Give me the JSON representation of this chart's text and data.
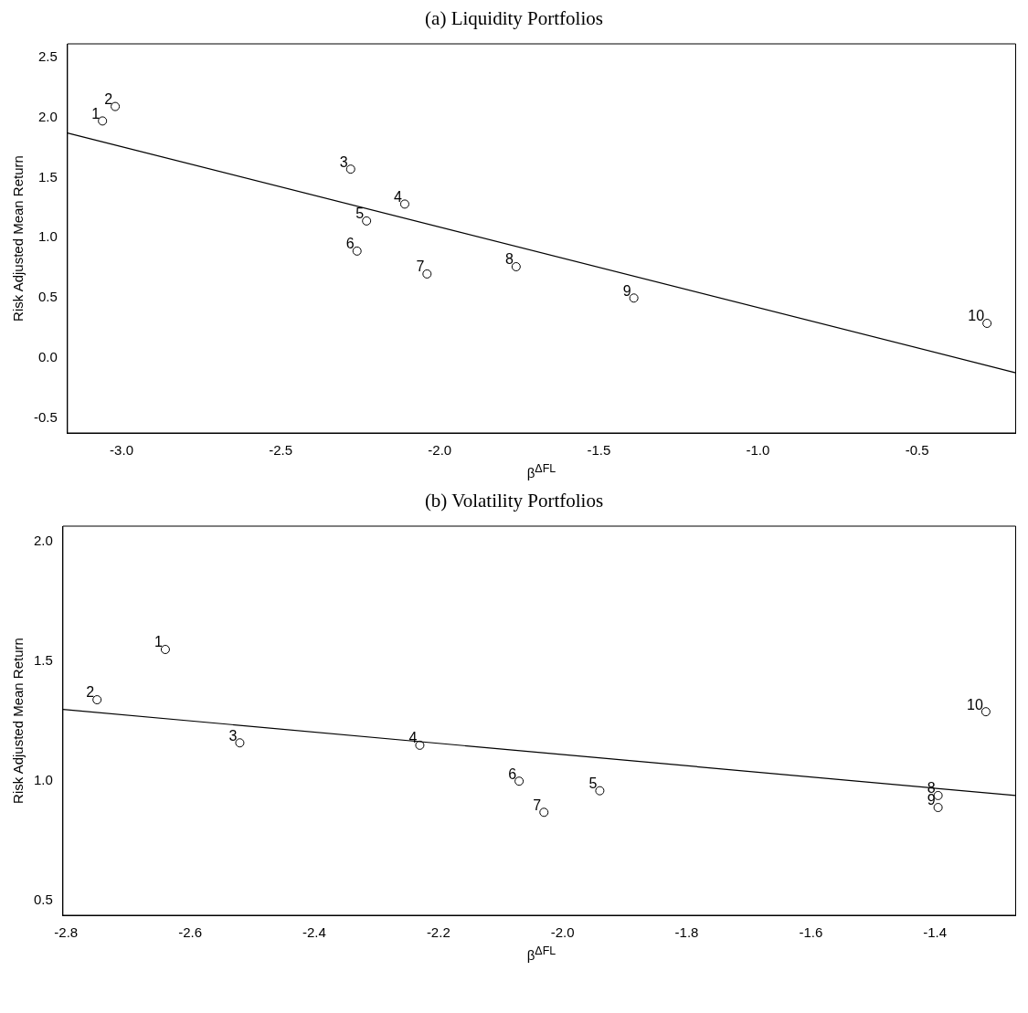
{
  "chart_data": [
    {
      "type": "scatter",
      "title": "(a) Liquidity Portfolios",
      "xlabel": "β$^{ΔFL}$",
      "ylabel": "Risk Adjusted Mean Return",
      "grid": false,
      "legend": false,
      "xlim": [
        -3.17,
        -0.19
      ],
      "xticks": [
        {
          "value": -3,
          "label": "-3.0"
        },
        {
          "value": -2.5,
          "label": "-2.5"
        },
        {
          "value": -2,
          "label": "-2.0"
        },
        {
          "value": -1.5,
          "label": "-1.5"
        },
        {
          "value": -1,
          "label": "-1.0"
        },
        {
          "value": -0.5,
          "label": "-0.5"
        }
      ],
      "ylim": [
        -0.62,
        2.61
      ],
      "yticks": [
        {
          "value": -0.5,
          "label": "-0.5"
        },
        {
          "value": 0,
          "label": "0.0"
        },
        {
          "value": 0.5,
          "label": "0.5"
        },
        {
          "value": 1,
          "label": "1.0"
        },
        {
          "value": 1.5,
          "label": "1.5"
        },
        {
          "value": 2,
          "label": "2.0"
        },
        {
          "value": 2.5,
          "label": "2.5"
        }
      ],
      "series": [
        {
          "type": "scatter",
          "marker": "circle",
          "color": "#000000",
          "x": [
            -3.06,
            -3.02,
            -2.28,
            -2.11,
            -2.23,
            -2.26,
            -2.04,
            -1.76,
            -1.39,
            -0.28
          ],
          "values": [
            1.97,
            2.09,
            1.57,
            1.28,
            1.14,
            0.89,
            0.7,
            0.76,
            0.5,
            0.29
          ]
        },
        {
          "type": "line",
          "marker": "none",
          "color": "#000000",
          "x": [
            -3.17,
            -0.19
          ],
          "values": [
            1.87,
            -0.12
          ]
        }
      ],
      "annotations": [
        {
          "text": "1",
          "x": -3.06,
          "y": 1.97
        },
        {
          "text": "2",
          "x": -3.02,
          "y": 2.09
        },
        {
          "text": "3",
          "x": -2.28,
          "y": 1.57
        },
        {
          "text": "4",
          "x": -2.11,
          "y": 1.28
        },
        {
          "text": "5",
          "x": -2.23,
          "y": 1.14
        },
        {
          "text": "6",
          "x": -2.26,
          "y": 0.89
        },
        {
          "text": "7",
          "x": -2.04,
          "y": 0.7
        },
        {
          "text": "8",
          "x": -1.76,
          "y": 0.76
        },
        {
          "text": "9",
          "x": -1.39,
          "y": 0.5
        },
        {
          "text": "10",
          "x": -0.28,
          "y": 0.29
        }
      ]
    },
    {
      "type": "scatter",
      "title": "(b) Volatility Portfolios",
      "xlabel": "β$^{ΔFL}$",
      "ylabel": "Risk Adjusted Mean Return",
      "grid": false,
      "legend": false,
      "xlim": [
        -2.805,
        -1.27
      ],
      "xticks": [
        {
          "value": -2.8,
          "label": "-2.8"
        },
        {
          "value": -2.6,
          "label": "-2.6"
        },
        {
          "value": -2.4,
          "label": "-2.4"
        },
        {
          "value": -2.2,
          "label": "-2.2"
        },
        {
          "value": -2,
          "label": "-2.0"
        },
        {
          "value": -1.8,
          "label": "-1.8"
        },
        {
          "value": -1.6,
          "label": "-1.6"
        },
        {
          "value": -1.4,
          "label": "-1.4"
        }
      ],
      "ylim": [
        0.44,
        2.065
      ],
      "yticks": [
        {
          "value": 0.5,
          "label": "0.5"
        },
        {
          "value": 1,
          "label": "1.0"
        },
        {
          "value": 1.5,
          "label": "1.5"
        },
        {
          "value": 2,
          "label": "2.0"
        }
      ],
      "series": [
        {
          "type": "scatter",
          "marker": "circle",
          "color": "#000000",
          "x": [
            -2.64,
            -2.75,
            -2.52,
            -2.23,
            -1.94,
            -2.07,
            -2.03,
            -1.395,
            -1.395,
            -1.318
          ],
          "values": [
            1.55,
            1.34,
            1.16,
            1.15,
            0.96,
            1.0,
            0.87,
            0.94,
            0.89,
            1.29
          ]
        },
        {
          "type": "line",
          "marker": "none",
          "color": "#000000",
          "x": [
            -2.805,
            -1.27
          ],
          "values": [
            1.3,
            0.94
          ]
        }
      ],
      "annotations": [
        {
          "text": "1",
          "x": -2.64,
          "y": 1.55
        },
        {
          "text": "2",
          "x": -2.75,
          "y": 1.34
        },
        {
          "text": "3",
          "x": -2.52,
          "y": 1.16
        },
        {
          "text": "4",
          "x": -2.23,
          "y": 1.15
        },
        {
          "text": "5",
          "x": -1.94,
          "y": 0.96
        },
        {
          "text": "6",
          "x": -2.07,
          "y": 1.0
        },
        {
          "text": "7",
          "x": -2.03,
          "y": 0.87
        },
        {
          "text": "8",
          "x": -1.395,
          "y": 0.94
        },
        {
          "text": "9",
          "x": -1.395,
          "y": 0.89
        },
        {
          "text": "10",
          "x": -1.318,
          "y": 1.29
        }
      ]
    }
  ]
}
